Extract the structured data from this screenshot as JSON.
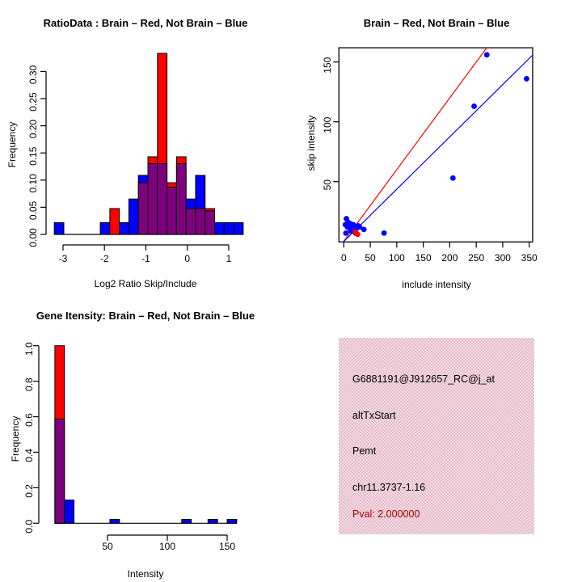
{
  "colors": {
    "red": "#ff0000",
    "blue": "#0000ff",
    "overlap_purple": "#7d007d",
    "axis_black": "#000000",
    "pval_dark_red": "#990000",
    "info_bg_pink": "#f2bacc",
    "info_bg_base": "#e8dee2"
  },
  "chart_data": [
    {
      "type": "bar",
      "title": "RatioData : Brain – Red, Not Brain – Blue",
      "xlabel": "Log2 Ratio Skip/Include",
      "ylabel": "Frequency",
      "x_ticks": [
        -3,
        -2,
        -1,
        0,
        1
      ],
      "y_ticks": [
        "0.00",
        "0.05",
        "0.10",
        "0.15",
        "0.20",
        "0.25",
        "0.30"
      ],
      "ylim": [
        0,
        0.333
      ],
      "grid": false,
      "bin_width": 0.23,
      "series": [
        {
          "name": "Brain",
          "color": "red"
        },
        {
          "name": "Not Brain",
          "color": "blue"
        }
      ],
      "bars": [
        {
          "x0": -3.21,
          "blue": 0.0217,
          "red": 0
        },
        {
          "x0": -2.1,
          "blue": 0.0217,
          "red": 0
        },
        {
          "x0": -1.87,
          "blue": 0,
          "red": 0.0476
        },
        {
          "x0": -1.64,
          "blue": 0.0217,
          "red": 0
        },
        {
          "x0": -1.41,
          "blue": 0.0652,
          "red": 0
        },
        {
          "x0": -1.18,
          "blue": 0.1087,
          "red": 0.0952
        },
        {
          "x0": -0.95,
          "blue": 0.1304,
          "red": 0.1429
        },
        {
          "x0": -0.72,
          "blue": 0.1304,
          "red": 0.3333
        },
        {
          "x0": -0.49,
          "blue": 0.087,
          "red": 0.0952
        },
        {
          "x0": -0.26,
          "blue": 0.1304,
          "red": 0.1429
        },
        {
          "x0": -0.03,
          "blue": 0.0652,
          "red": 0.0476
        },
        {
          "x0": 0.2,
          "blue": 0.1087,
          "red": 0.0476
        },
        {
          "x0": 0.43,
          "blue": 0.0435,
          "red": 0.0476
        },
        {
          "x0": 0.66,
          "blue": 0.0217,
          "red": 0
        },
        {
          "x0": 0.89,
          "blue": 0.0217,
          "red": 0
        },
        {
          "x0": 1.12,
          "blue": 0.0217,
          "red": 0
        }
      ]
    },
    {
      "type": "scatter",
      "title": "Brain – Red, Not Brain – Blue",
      "xlabel": "include intensity",
      "ylabel": "skip intensity",
      "x_ticks": [
        0,
        50,
        100,
        150,
        200,
        250,
        300,
        350
      ],
      "y_ticks": [
        50,
        100,
        150
      ],
      "xlim": [
        -9.2,
        356.5
      ],
      "ylim": [
        -0.4,
        161.9
      ],
      "grid": false,
      "blue_points": [
        [
          5,
          19
        ],
        [
          3,
          14
        ],
        [
          8,
          16
        ],
        [
          10,
          13
        ],
        [
          15,
          12
        ],
        [
          18,
          14
        ],
        [
          13,
          9
        ],
        [
          4,
          7
        ],
        [
          22,
          7
        ],
        [
          24,
          11
        ],
        [
          30,
          12
        ],
        [
          38,
          10
        ],
        [
          27,
          13
        ],
        [
          7,
          12
        ],
        [
          12,
          15
        ],
        [
          20,
          10
        ],
        [
          76,
          7
        ],
        [
          206,
          53
        ],
        [
          246,
          113
        ],
        [
          270,
          156
        ],
        [
          345,
          136
        ]
      ],
      "red_points": [
        [
          22,
          8
        ],
        [
          26,
          6
        ]
      ],
      "lines": [
        {
          "color": "red",
          "slope": 0.6,
          "intercept": 0
        },
        {
          "color": "blue",
          "slope": 0.437,
          "intercept": 0
        }
      ]
    },
    {
      "type": "bar",
      "title": "Gene Itensity: Brain – Red, Not Brain – Blue",
      "xlabel": "Intensity",
      "ylabel": "Frequency",
      "x_ticks": [
        50,
        100,
        150
      ],
      "y_ticks": [
        "0.0",
        "0.2",
        "0.4",
        "0.6",
        "0.8",
        "1.0"
      ],
      "ylim": [
        0,
        1.0
      ],
      "grid": false,
      "bin_width": 8,
      "series": [
        {
          "name": "Brain",
          "color": "red"
        },
        {
          "name": "Not Brain",
          "color": "blue"
        }
      ],
      "bars": [
        {
          "x0": 6,
          "blue": 0.587,
          "red": 1.0
        },
        {
          "x0": 14,
          "blue": 0.1304,
          "red": 0
        },
        {
          "x0": 52,
          "blue": 0.0217,
          "red": 0
        },
        {
          "x0": 112,
          "blue": 0.0217,
          "red": 0
        },
        {
          "x0": 134,
          "blue": 0.0217,
          "red": 0
        },
        {
          "x0": 150,
          "blue": 0.0217,
          "red": 0
        }
      ]
    }
  ],
  "info_panel": {
    "probe_id": "G6881191@J912657_RC@j_at",
    "event_type": "altTxStart",
    "gene_symbol": "Pemt",
    "locus": "chr11.3737-1.16",
    "pval_label": "Pval: 2.000000"
  }
}
